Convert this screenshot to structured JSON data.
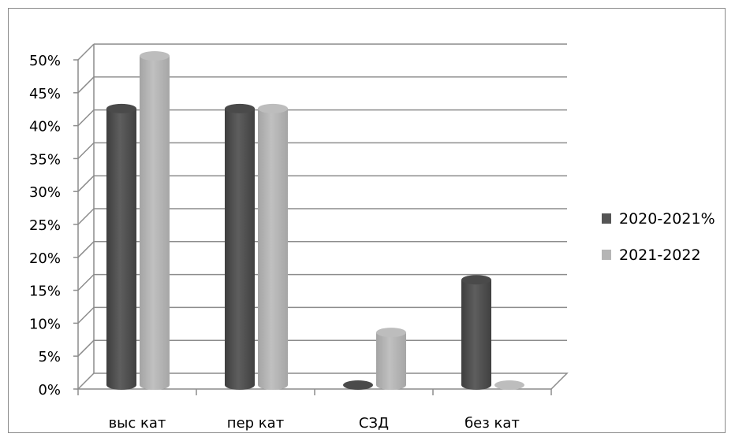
{
  "chart_data": {
    "type": "bar",
    "style": "3d-cylinder",
    "categories": [
      "выс кат",
      "пер кат",
      "СЗД",
      "без кат"
    ],
    "series": [
      {
        "name": "2020-2021%",
        "values": [
          42,
          42,
          0,
          16
        ],
        "color": "#555555"
      },
      {
        "name": "2021-2022",
        "values": [
          50,
          42,
          8,
          0
        ],
        "color": "#b5b5b5"
      }
    ],
    "y_ticks": [
      "0%",
      "5%",
      "10%",
      "15%",
      "20%",
      "25%",
      "30%",
      "35%",
      "40%",
      "45%",
      "50%"
    ],
    "ylim": [
      0,
      50
    ],
    "grid": true,
    "legend_position": "right"
  }
}
